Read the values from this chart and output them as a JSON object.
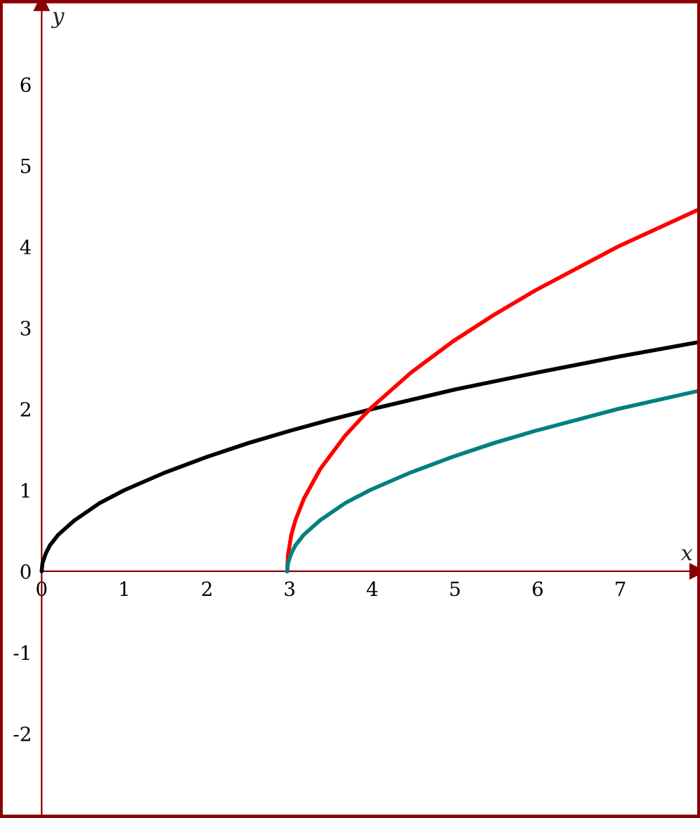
{
  "chart_data": {
    "type": "line",
    "xlabel": "x",
    "ylabel": "y",
    "xlim": [
      -0.47,
      7.93
    ],
    "ylim": [
      -3.0,
      7.0
    ],
    "xticks": [
      0,
      1,
      2,
      3,
      4,
      5,
      6,
      7
    ],
    "yticks": [
      -2,
      -1,
      0,
      1,
      2,
      3,
      4,
      5,
      6
    ],
    "grid": false,
    "marker": "none",
    "line_style": "solid",
    "series": [
      {
        "color": "#000000",
        "x": [
          0,
          0.01,
          0.05,
          0.1,
          0.2,
          0.4,
          0.7,
          1,
          1.5,
          2,
          2.5,
          3,
          3.5,
          4,
          5,
          6,
          7,
          7.93
        ],
        "values": [
          0,
          0.1,
          0.22,
          0.32,
          0.45,
          0.63,
          0.84,
          1,
          1.22,
          1.41,
          1.58,
          1.73,
          1.87,
          2,
          2.24,
          2.45,
          2.65,
          2.82
        ]
      },
      {
        "color": "#ff0000",
        "x": [
          2.97,
          2.98,
          3.02,
          3.07,
          3.17,
          3.37,
          3.67,
          3.97,
          4.47,
          4.97,
          5.47,
          5.97,
          6.97,
          7.93
        ],
        "values": [
          0,
          0.2,
          0.45,
          0.63,
          0.89,
          1.26,
          1.67,
          2,
          2.45,
          2.83,
          3.16,
          3.46,
          4,
          4.45
        ]
      },
      {
        "color": "#008080",
        "x": [
          2.97,
          2.98,
          3.02,
          3.07,
          3.17,
          3.37,
          3.67,
          3.97,
          4.47,
          4.97,
          5.47,
          5.97,
          6.97,
          7.93
        ],
        "values": [
          0,
          0.1,
          0.22,
          0.32,
          0.45,
          0.63,
          0.84,
          1,
          1.22,
          1.41,
          1.58,
          1.73,
          2,
          2.22
        ]
      }
    ]
  }
}
